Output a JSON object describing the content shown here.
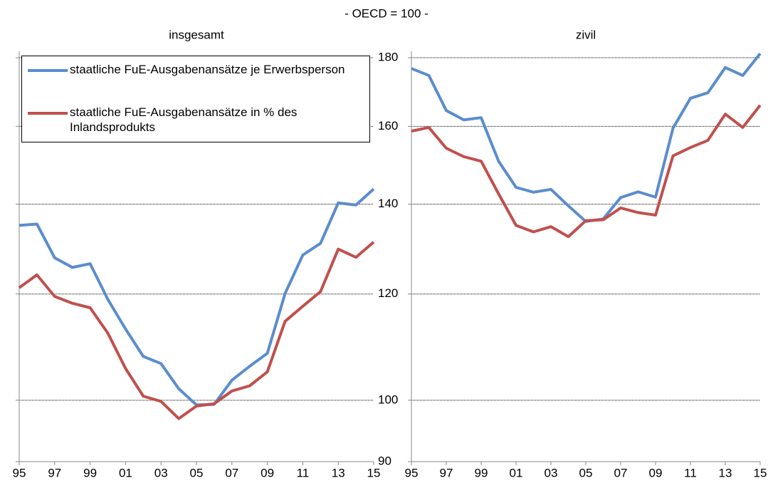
{
  "title": "- OECD = 100 -",
  "chart_data": [
    {
      "type": "line",
      "title": "insgesamt",
      "legend": "upper left",
      "grid": true,
      "log_scale": true,
      "x": [
        1995,
        1996,
        1997,
        1998,
        1999,
        2000,
        2001,
        2002,
        2003,
        2004,
        2005,
        2006,
        2007,
        2008,
        2009,
        2010,
        2011,
        2012,
        2013,
        2014,
        2015
      ],
      "xlim": [
        1995,
        2015
      ],
      "xticks": [
        {
          "value": 1995,
          "label": "95"
        },
        {
          "value": 1997,
          "label": "97"
        },
        {
          "value": 1999,
          "label": "99"
        },
        {
          "value": 2001,
          "label": "01"
        },
        {
          "value": 2003,
          "label": "03"
        },
        {
          "value": 2005,
          "label": "05"
        },
        {
          "value": 2007,
          "label": "07"
        },
        {
          "value": 2009,
          "label": "09"
        },
        {
          "value": 2011,
          "label": "11"
        },
        {
          "value": 2013,
          "label": "13"
        },
        {
          "value": 2015,
          "label": "15"
        }
      ],
      "ylim": [
        90,
        182
      ],
      "yticks": [
        90,
        100,
        120,
        140,
        160,
        180
      ],
      "series": [
        {
          "name": "staatliche FuE-Ausgabenansätze je Erwerbsperson",
          "color": "#5b8dcd",
          "values": [
            135.0,
            135.3,
            127.7,
            125.6,
            126.4,
            118.9,
            113.0,
            107.8,
            106.5,
            102.0,
            99.2,
            99.3,
            103.5,
            106.0,
            108.4,
            120.1,
            128.3,
            130.9,
            140.3,
            139.8,
            143.7
          ]
        },
        {
          "name": "staatliche FuE-Ausgabenansätze in % des Inlandsprodukts",
          "color": "#c0504d",
          "values": [
            121.3,
            124.0,
            119.5,
            118.1,
            117.2,
            112.2,
            105.6,
            100.7,
            99.8,
            96.9,
            99.0,
            99.4,
            101.6,
            102.5,
            105.0,
            114.5,
            117.5,
            120.5,
            129.6,
            127.8,
            131.2
          ]
        }
      ]
    },
    {
      "type": "line",
      "title": "zivil",
      "grid": true,
      "log_scale": true,
      "x": [
        1995,
        1996,
        1997,
        1998,
        1999,
        2000,
        2001,
        2002,
        2003,
        2004,
        2005,
        2006,
        2007,
        2008,
        2009,
        2010,
        2011,
        2012,
        2013,
        2014,
        2015
      ],
      "xlim": [
        1995,
        2015
      ],
      "xticks": [
        {
          "value": 1995,
          "label": "95"
        },
        {
          "value": 1997,
          "label": "97"
        },
        {
          "value": 1999,
          "label": "99"
        },
        {
          "value": 2001,
          "label": "01"
        },
        {
          "value": 2003,
          "label": "03"
        },
        {
          "value": 2005,
          "label": "05"
        },
        {
          "value": 2007,
          "label": "07"
        },
        {
          "value": 2009,
          "label": "09"
        },
        {
          "value": 2011,
          "label": "11"
        },
        {
          "value": 2013,
          "label": "13"
        },
        {
          "value": 2015,
          "label": "15"
        }
      ],
      "ylim": [
        90,
        182
      ],
      "yticks": [
        90,
        100,
        120,
        140,
        160,
        180
      ],
      "series": [
        {
          "color": "#5b8dcd",
          "values": [
            176.7,
            174.6,
            164.4,
            161.8,
            162.4,
            150.7,
            144.1,
            142.9,
            143.6,
            139.6,
            135.9,
            136.5,
            141.6,
            143.0,
            141.7,
            159.5,
            167.9,
            169.5,
            177.0,
            174.6,
            181.3
          ]
        },
        {
          "color": "#c0504d",
          "values": [
            158.7,
            159.7,
            154.1,
            151.9,
            150.7,
            142.5,
            135.0,
            133.5,
            134.7,
            132.4,
            136.1,
            136.3,
            139.1,
            138.0,
            137.4,
            152.1,
            154.3,
            156.2,
            163.4,
            159.7,
            165.9
          ]
        }
      ]
    }
  ]
}
